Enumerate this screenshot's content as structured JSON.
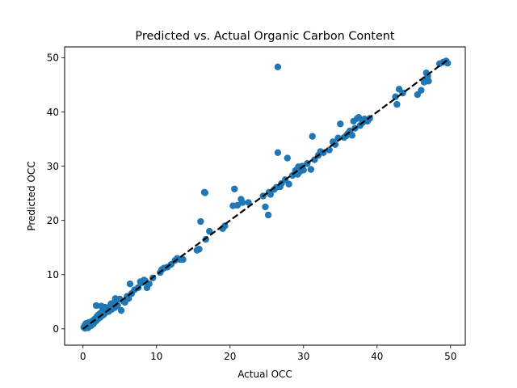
{
  "chart_data": {
    "type": "scatter",
    "title": "Predicted vs. Actual Organic Carbon Content",
    "xlabel": "Actual OCC",
    "ylabel": "Predicted OCC",
    "xlim": [
      -2.5,
      52
    ],
    "ylim": [
      -3,
      52
    ],
    "xticks": [
      0,
      10,
      20,
      30,
      40,
      50
    ],
    "yticks": [
      0,
      10,
      20,
      30,
      40,
      50
    ],
    "grid": false,
    "legend": false,
    "colors": {
      "points": "#1f77b4",
      "reference_line": "#000000"
    },
    "reference_line": {
      "style": "dashed",
      "from": [
        0,
        0
      ],
      "to": [
        49.5,
        49.5
      ]
    },
    "series": [
      {
        "points": [
          [
            0.1,
            0.3
          ],
          [
            0.2,
            0.6
          ],
          [
            0.3,
            0.1
          ],
          [
            0.4,
            1.0
          ],
          [
            0.5,
            0.4
          ],
          [
            0.6,
            0.8
          ],
          [
            0.7,
            0.2
          ],
          [
            0.8,
            1.2
          ],
          [
            0.9,
            0.7
          ],
          [
            1.0,
            1.0
          ],
          [
            1.1,
            0.6
          ],
          [
            1.2,
            1.4
          ],
          [
            1.3,
            1.1
          ],
          [
            1.4,
            0.9
          ],
          [
            1.5,
            1.7
          ],
          [
            1.6,
            1.3
          ],
          [
            1.7,
            1.9
          ],
          [
            1.8,
            1.5
          ],
          [
            1.9,
            2.3
          ],
          [
            2.0,
            1.8
          ],
          [
            2.1,
            2.6
          ],
          [
            2.2,
            2.0
          ],
          [
            2.3,
            2.8
          ],
          [
            2.4,
            2.2
          ],
          [
            2.5,
            3.0
          ],
          [
            2.6,
            2.5
          ],
          [
            2.7,
            3.4
          ],
          [
            2.8,
            2.6
          ],
          [
            2.9,
            3.6
          ],
          [
            3.0,
            2.9
          ],
          [
            3.2,
            3.3
          ],
          [
            3.4,
            3.9
          ],
          [
            3.5,
            3.2
          ],
          [
            3.7,
            4.0
          ],
          [
            3.9,
            3.6
          ],
          [
            4.1,
            4.4
          ],
          [
            4.3,
            3.9
          ],
          [
            4.5,
            4.8
          ],
          [
            4.7,
            4.3
          ],
          [
            5.0,
            5.5
          ],
          [
            1.8,
            4.3
          ],
          [
            2.5,
            4.2
          ],
          [
            3.0,
            4.0
          ],
          [
            3.8,
            4.6
          ],
          [
            4.0,
            4.7
          ],
          [
            4.4,
            5.6
          ],
          [
            5.2,
            3.4
          ],
          [
            5.5,
            5.1
          ],
          [
            5.7,
            4.9
          ],
          [
            6.0,
            6.0
          ],
          [
            6.2,
            5.6
          ],
          [
            6.4,
            8.3
          ],
          [
            6.6,
            6.5
          ],
          [
            7.0,
            7.2
          ],
          [
            7.5,
            7.6
          ],
          [
            7.8,
            8.7
          ],
          [
            8.0,
            8.5
          ],
          [
            8.3,
            9.0
          ],
          [
            8.5,
            8.8
          ],
          [
            8.7,
            7.6
          ],
          [
            9.0,
            8.3
          ],
          [
            9.5,
            9.4
          ],
          [
            10.5,
            10.4
          ],
          [
            10.7,
            10.9
          ],
          [
            11.0,
            11.2
          ],
          [
            11.5,
            11.4
          ],
          [
            12.0,
            11.9
          ],
          [
            12.5,
            12.6
          ],
          [
            12.8,
            13.0
          ],
          [
            13.2,
            12.8
          ],
          [
            13.6,
            12.8
          ],
          [
            15.5,
            14.5
          ],
          [
            15.8,
            14.7
          ],
          [
            16.0,
            19.8
          ],
          [
            16.5,
            25.2
          ],
          [
            16.6,
            25.1
          ],
          [
            16.7,
            16.5
          ],
          [
            17.2,
            18.0
          ],
          [
            19.0,
            18.5
          ],
          [
            19.3,
            19.0
          ],
          [
            20.4,
            22.7
          ],
          [
            20.6,
            25.8
          ],
          [
            21.0,
            22.8
          ],
          [
            21.5,
            23.9
          ],
          [
            21.7,
            23.3
          ],
          [
            22.5,
            23.3
          ],
          [
            24.5,
            24.5
          ],
          [
            24.8,
            22.5
          ],
          [
            25.2,
            21.0
          ],
          [
            25.5,
            24.8
          ],
          [
            25.3,
            25.2
          ],
          [
            26.0,
            25.7
          ],
          [
            26.3,
            26.1
          ],
          [
            26.5,
            32.5
          ],
          [
            26.5,
            48.3
          ],
          [
            26.8,
            26.2
          ],
          [
            27.0,
            26.8
          ],
          [
            27.5,
            27.5
          ],
          [
            27.8,
            31.5
          ],
          [
            28.0,
            26.7
          ],
          [
            28.5,
            28.3
          ],
          [
            28.9,
            29.2
          ],
          [
            29.2,
            28.5
          ],
          [
            29.3,
            29.9
          ],
          [
            29.5,
            29.0
          ],
          [
            29.8,
            30.0
          ],
          [
            30.0,
            29.3
          ],
          [
            30.5,
            30.5
          ],
          [
            31.0,
            29.4
          ],
          [
            31.2,
            35.5
          ],
          [
            31.5,
            31.2
          ],
          [
            32.0,
            32.0
          ],
          [
            32.3,
            32.7
          ],
          [
            32.7,
            32.5
          ],
          [
            33.5,
            33.0
          ],
          [
            34.0,
            34.5
          ],
          [
            34.3,
            34.0
          ],
          [
            34.7,
            35.2
          ],
          [
            35.0,
            37.8
          ],
          [
            35.5,
            35.3
          ],
          [
            35.8,
            35.6
          ],
          [
            36.0,
            36.0
          ],
          [
            36.3,
            36.5
          ],
          [
            36.6,
            35.7
          ],
          [
            36.8,
            38.3
          ],
          [
            37.0,
            37.0
          ],
          [
            37.3,
            38.8
          ],
          [
            37.5,
            39.0
          ],
          [
            37.7,
            37.5
          ],
          [
            38.0,
            38.0
          ],
          [
            38.3,
            38.7
          ],
          [
            38.7,
            38.3
          ],
          [
            39.0,
            38.8
          ],
          [
            42.5,
            42.8
          ],
          [
            42.7,
            41.4
          ],
          [
            43.0,
            44.2
          ],
          [
            43.5,
            43.5
          ],
          [
            45.5,
            43.2
          ],
          [
            46.0,
            44.0
          ],
          [
            46.4,
            45.5
          ],
          [
            46.6,
            46.0
          ],
          [
            46.7,
            47.2
          ],
          [
            46.9,
            46.6
          ],
          [
            47.0,
            45.7
          ],
          [
            48.5,
            48.9
          ],
          [
            49.0,
            49.2
          ],
          [
            49.4,
            49.4
          ],
          [
            49.6,
            49.0
          ]
        ]
      }
    ]
  }
}
